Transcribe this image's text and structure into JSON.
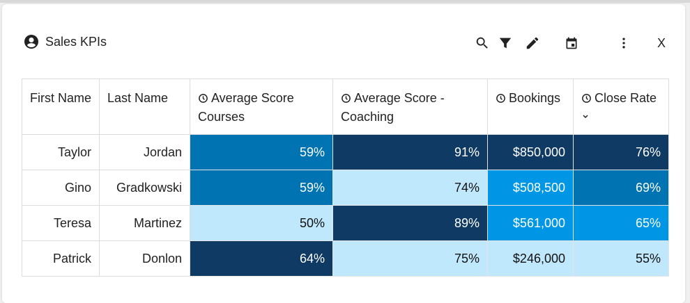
{
  "widget": {
    "title": "Sales KPIs",
    "close_label": "X",
    "tools": [
      "search-icon",
      "filter-icon",
      "edit-icon",
      "calendar-icon",
      "more-vertical-icon"
    ]
  },
  "colors": {
    "dark": "#0f3a64",
    "mid": "#0074b3",
    "bright": "#0096e6",
    "light": "#c0e8fc"
  },
  "table": {
    "columns": [
      {
        "label": "First Name",
        "clock": false
      },
      {
        "label": "Last Name",
        "clock": false
      },
      {
        "label": "Average Score Courses",
        "clock": true
      },
      {
        "label": "Average Score - Coaching",
        "clock": true
      },
      {
        "label": "Bookings",
        "clock": true
      },
      {
        "label": "Close Rate",
        "clock": true,
        "sorted": "descending"
      }
    ],
    "rows": [
      {
        "cells": [
          "Taylor",
          "Jordan",
          "59%",
          "91%",
          "$850,000",
          "76%"
        ],
        "shades": [
          null,
          null,
          "mid",
          "dark",
          "dark",
          "dark"
        ]
      },
      {
        "cells": [
          "Gino",
          "Gradkowski",
          "59%",
          "74%",
          "$508,500",
          "69%"
        ],
        "shades": [
          null,
          null,
          "mid",
          "light",
          "bright",
          "mid"
        ]
      },
      {
        "cells": [
          "Teresa",
          "Martinez",
          "50%",
          "89%",
          "$561,000",
          "65%"
        ],
        "shades": [
          null,
          null,
          "light",
          "dark",
          "bright",
          "bright"
        ]
      },
      {
        "cells": [
          "Patrick",
          "Donlon",
          "64%",
          "75%",
          "$246,000",
          "55%"
        ],
        "shades": [
          null,
          null,
          "dark",
          "light",
          "light",
          "light"
        ]
      }
    ]
  }
}
